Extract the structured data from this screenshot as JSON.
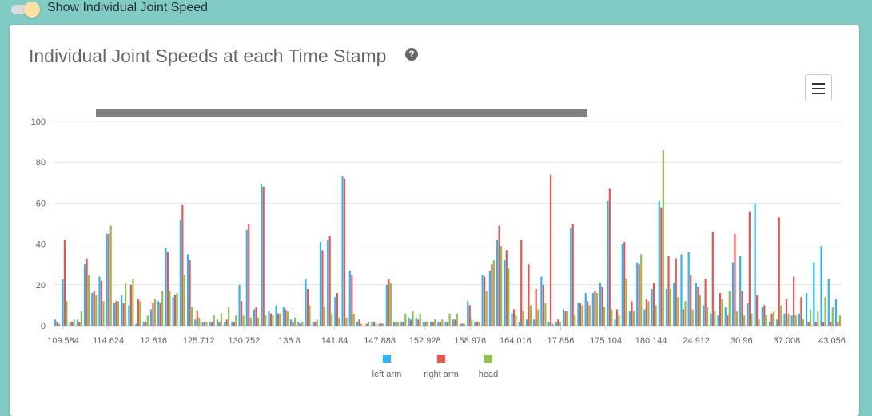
{
  "toggle": {
    "label": "Show Individual Joint Speed",
    "on": true
  },
  "card": {
    "title": "Individual Joint Speeds at each Time Stamp",
    "help_icon": "help-circle-icon",
    "menu_icon": "hamburger-menu-icon"
  },
  "colors": {
    "left_arm": "#29b6f6",
    "right_arm": "#ef5350",
    "head": "#8bc34a",
    "background": "#80cbc4",
    "scrollbar": "#808080"
  },
  "chart_data": {
    "type": "bar",
    "ylim": [
      0,
      100
    ],
    "yticks": [
      "0",
      "20",
      "40",
      "60",
      "80",
      "100"
    ],
    "xtick_labels": [
      "109.584",
      "114.624",
      "12.816",
      "125.712",
      "130.752",
      "136.8",
      "141.84",
      "147.888",
      "152.928",
      "158.976",
      "164.016",
      "17.856",
      "175.104",
      "180.144",
      "24.912",
      "30.96",
      "37.008",
      "43.056"
    ],
    "legend": [
      "left arm",
      "right arm",
      "head"
    ],
    "legend_position": "bottom",
    "grid": true,
    "series": [
      {
        "name": "left arm",
        "values": [
          3,
          23,
          2,
          3,
          30,
          16,
          24,
          45,
          11,
          15,
          10,
          1,
          2,
          8,
          12,
          38,
          14,
          52,
          35,
          3,
          2,
          2,
          3,
          2,
          2,
          20,
          47,
          8,
          69,
          7,
          10,
          9,
          3,
          2,
          23,
          2,
          41,
          42,
          14,
          73,
          27,
          2,
          0,
          2,
          1,
          20,
          2,
          2,
          4,
          4,
          2,
          2,
          2,
          2,
          3,
          1,
          12,
          2,
          25,
          27,
          42,
          32,
          6,
          2,
          3,
          3,
          24,
          2,
          2,
          8,
          48,
          11,
          16,
          16,
          21,
          61,
          3,
          40,
          7,
          31,
          8,
          18,
          61,
          18,
          21,
          35,
          36,
          21,
          10,
          6,
          5,
          9,
          31,
          34,
          11,
          60,
          9,
          2,
          3,
          6,
          5,
          6,
          16,
          31,
          39,
          23,
          13
        ],
        "right_arm": []
      },
      {
        "name": "right arm",
        "values": [
          2,
          42,
          2,
          2,
          33,
          17,
          22,
          45,
          12,
          11,
          20,
          13,
          2,
          11,
          11,
          36,
          15,
          59,
          32,
          7,
          2,
          2,
          2,
          3,
          2,
          12,
          50,
          9,
          68,
          6,
          6,
          8,
          2,
          1,
          18,
          2,
          37,
          44,
          16,
          72,
          25,
          3,
          1,
          2,
          1,
          23,
          2,
          2,
          3,
          3,
          2,
          2,
          2,
          2,
          3,
          1,
          10,
          2,
          24,
          30,
          49,
          37,
          8,
          42,
          30,
          18,
          20,
          74,
          3,
          7,
          50,
          11,
          12,
          17,
          19,
          67,
          8,
          41,
          12,
          30,
          13,
          21,
          58,
          34,
          33,
          8,
          25,
          19,
          23,
          46,
          16,
          5,
          45,
          17,
          56,
          15,
          10,
          6,
          53,
          13,
          24,
          14,
          2,
          2,
          2,
          2,
          2
        ],
        "_ignore": true
      },
      {
        "name": "head",
        "values": [
          1,
          12,
          3,
          7,
          25,
          15,
          12,
          49,
          12,
          21,
          23,
          12,
          5,
          13,
          17,
          17,
          16,
          25,
          9,
          4,
          2,
          5,
          6,
          9,
          5,
          5,
          4,
          4,
          5,
          5,
          6,
          7,
          4,
          2,
          10,
          3,
          9,
          6,
          4,
          4,
          6,
          1,
          2,
          1,
          1,
          21,
          2,
          6,
          7,
          6,
          2,
          3,
          3,
          6,
          6,
          1,
          3,
          2,
          17,
          32,
          39,
          28,
          5,
          7,
          10,
          8,
          11,
          1,
          2,
          7,
          5,
          10,
          10,
          16,
          9,
          8,
          5,
          23,
          7,
          35,
          12,
          10,
          86,
          18,
          14,
          12,
          8,
          15,
          9,
          7,
          13,
          17,
          7,
          5,
          6,
          3,
          5,
          7,
          10,
          6,
          5,
          3,
          8,
          7,
          14,
          9,
          5
        ]
      }
    ]
  }
}
